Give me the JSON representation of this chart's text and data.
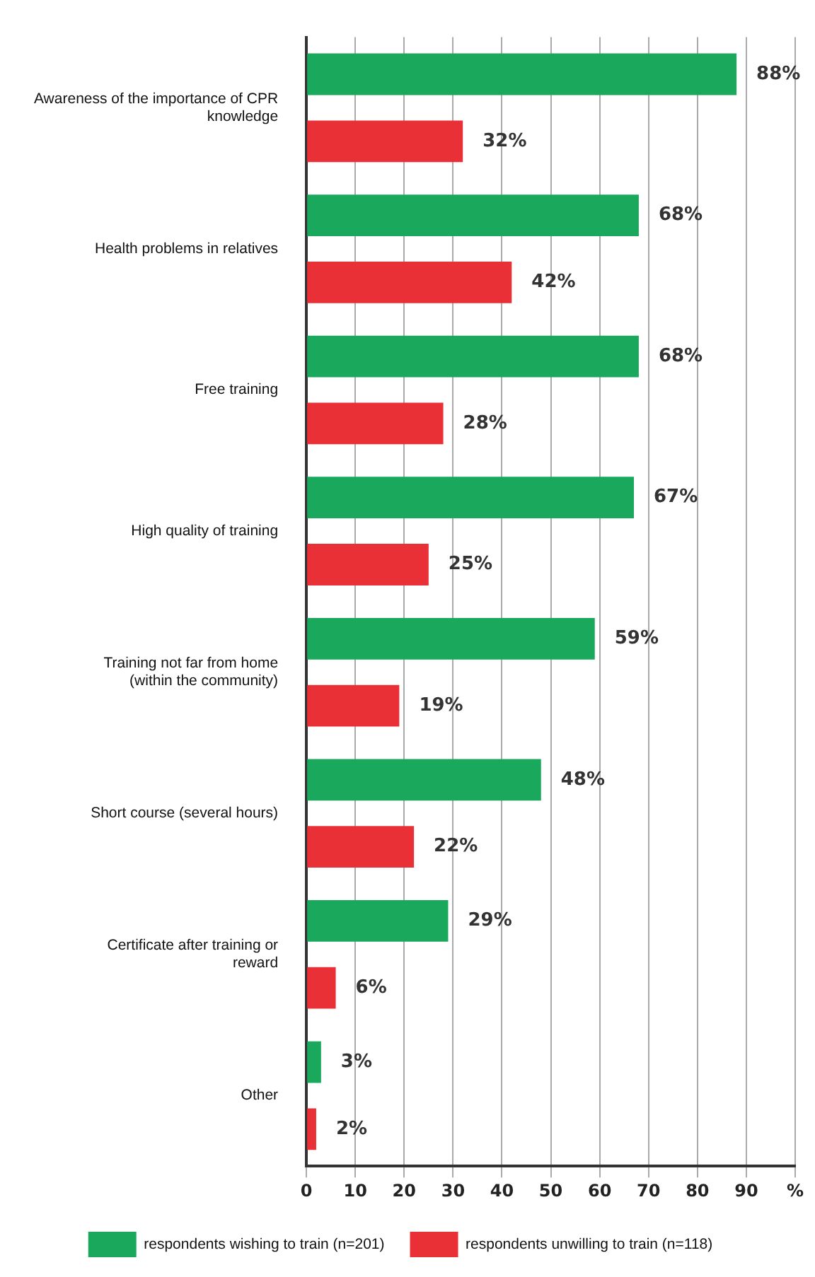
{
  "chart_data": {
    "type": "bar",
    "orientation": "horizontal",
    "categories": [
      "Awareness of the importance of CPR knowledge",
      "Health problems in relatives",
      "Free training",
      "High quality of training",
      "Training not far from home (within the community)",
      "Short course (several hours)",
      "Certificate after training or reward",
      "Other"
    ],
    "series": [
      {
        "name": "respondents wishing to train (n=201)",
        "color": "#1aa85c",
        "values": [
          88,
          68,
          68,
          67,
          59,
          48,
          29,
          3
        ],
        "value_labels": [
          "88%",
          "68%",
          "68%",
          "67%",
          "59%",
          "48%",
          "29%",
          "3%"
        ]
      },
      {
        "name": "respondents unwilling to train (n=118)",
        "color": "#e93036",
        "values": [
          32,
          42,
          28,
          25,
          19,
          22,
          6,
          2
        ],
        "value_labels": [
          "32%",
          "42%",
          "28%",
          "25%",
          "19%",
          "22%",
          "6%",
          "2%"
        ]
      }
    ],
    "xlim": [
      0,
      100
    ],
    "xticks": [
      0,
      10,
      20,
      30,
      40,
      50,
      60,
      70,
      80,
      90,
      {
        "value": 100,
        "label": "%"
      }
    ],
    "grid": "x",
    "legend": "bottom"
  }
}
